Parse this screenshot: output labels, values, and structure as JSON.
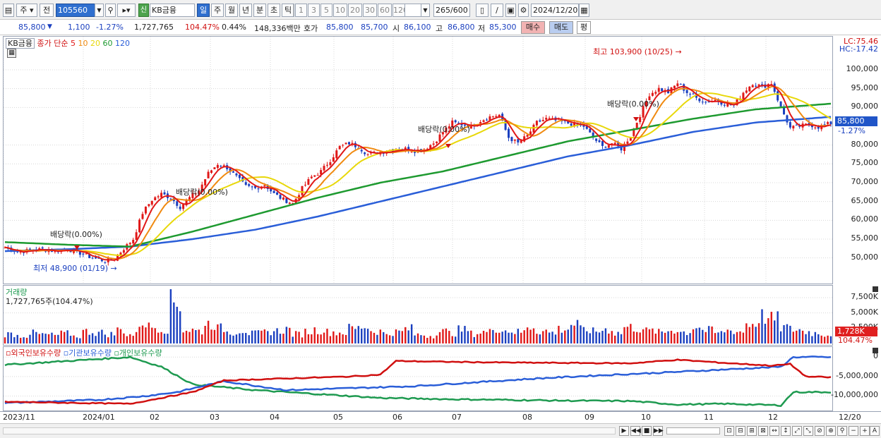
{
  "toolbar": {
    "period_label": "주",
    "prev_label": "전",
    "stock_code": "105560",
    "new_badge": "신",
    "stock_name": "KB금융",
    "periods": [
      "일",
      "주",
      "월",
      "년",
      "분",
      "초",
      "틱"
    ],
    "active_period": "일",
    "intervals": [
      "1",
      "3",
      "5",
      "10",
      "20",
      "30",
      "60",
      "120"
    ],
    "count": "265",
    "count_total": "/600",
    "date": "2024/12/20"
  },
  "quote": {
    "price": "85,800",
    "down_arrow": "▼",
    "change": "1,100",
    "change_pct": "-1.27%",
    "volume": "1,727,765",
    "volume_ratio": "104.47%",
    "turnover": "0.44%",
    "amount": "148,336백만",
    "ask_label": "호가",
    "ask": "85,800",
    "bid": "85,700",
    "open_label": "시",
    "open": "86,100",
    "high_label": "고",
    "high": "86,800",
    "low_label": "저",
    "low": "85,300",
    "buy_label": "매수",
    "sell_label": "매도",
    "eval_label": "평"
  },
  "price_pane": {
    "name": "KB금융",
    "legend_title": "종가 단순",
    "ma": [
      {
        "label": "5",
        "color": "#e01818"
      },
      {
        "label": "10",
        "color": "#f08a10"
      },
      {
        "label": "20",
        "color": "#e8d80a"
      },
      {
        "label": "60",
        "color": "#1e9a30"
      },
      {
        "label": "120",
        "color": "#2a5ed8"
      }
    ],
    "lc": "LC:75.46",
    "hc": "HC:-17.42",
    "yticks": [
      "100,000",
      "95,000",
      "90,000",
      "80,000",
      "75,000",
      "70,000",
      "65,000",
      "60,000",
      "55,000",
      "50,000"
    ],
    "price_tag": "85,800",
    "price_pct": "-1.27%",
    "annotations": {
      "high": "최고 103,900 (10/25)",
      "low": "최저 48,900 (01/19)",
      "div1": "배당락(0.00%)",
      "div2": "배당락(0.00%)",
      "div3": "배당락(0.00%)",
      "div4": "배당락(0.00%)"
    }
  },
  "volume_pane": {
    "title": "거래량",
    "value": "1,727,765주(104.47%)",
    "yticks": [
      "7,500K",
      "5,000K",
      "2,500K"
    ],
    "tag": "1,728K",
    "tag_pct": "104.47%"
  },
  "holdings_pane": {
    "legend": [
      {
        "label": "외국인보유수량",
        "color": "#d01010"
      },
      {
        "label": "기관보유수량",
        "color": "#2a5ed8"
      },
      {
        "label": "개인보유수량",
        "color": "#1e9a50"
      }
    ],
    "yticks": [
      "0",
      "-5,000,000",
      "-10,000,000"
    ]
  },
  "date_axis": {
    "labels": [
      "2023/11",
      "2024/01",
      "02",
      "03",
      "04",
      "05",
      "06",
      "07",
      "08",
      "09",
      "10",
      "11",
      "12",
      "12/20"
    ]
  },
  "chart_data": {
    "type": "candlestick",
    "title": "KB금융",
    "y_unit": "KRW",
    "ylim": [
      46000,
      106000
    ],
    "x_range": [
      "2023/11",
      "2024/12/20"
    ],
    "series": [
      {
        "name": "종가",
        "points": [
          [
            0,
            52800
          ],
          [
            4,
            51600
          ],
          [
            8,
            52000
          ],
          [
            12,
            52300
          ],
          [
            16,
            51800
          ],
          [
            20,
            52400
          ],
          [
            24,
            51300
          ],
          [
            28,
            50000
          ],
          [
            32,
            49200
          ],
          [
            35,
            49800
          ],
          [
            38,
            52500
          ],
          [
            41,
            55000
          ],
          [
            44,
            62000
          ],
          [
            47,
            65500
          ],
          [
            50,
            67000
          ],
          [
            53,
            66000
          ],
          [
            56,
            63500
          ],
          [
            59,
            66000
          ],
          [
            62,
            68000
          ],
          [
            65,
            72500
          ],
          [
            68,
            75000
          ],
          [
            71,
            74000
          ],
          [
            74,
            71500
          ],
          [
            77,
            69000
          ],
          [
            80,
            68500
          ],
          [
            83,
            69500
          ],
          [
            86,
            67000
          ],
          [
            89,
            65500
          ],
          [
            92,
            64500
          ],
          [
            95,
            68500
          ],
          [
            98,
            71500
          ],
          [
            101,
            73000
          ],
          [
            104,
            76000
          ],
          [
            107,
            79500
          ],
          [
            110,
            80500
          ],
          [
            113,
            79500
          ],
          [
            116,
            77500
          ],
          [
            119,
            78000
          ],
          [
            122,
            78500
          ],
          [
            125,
            79000
          ],
          [
            128,
            79000
          ],
          [
            131,
            78500
          ],
          [
            134,
            79000
          ],
          [
            137,
            80500
          ],
          [
            140,
            83500
          ],
          [
            143,
            86000
          ],
          [
            146,
            85500
          ],
          [
            149,
            85000
          ],
          [
            152,
            86500
          ],
          [
            155,
            87500
          ],
          [
            158,
            88000
          ],
          [
            161,
            82000
          ],
          [
            164,
            80500
          ],
          [
            167,
            82500
          ],
          [
            170,
            86000
          ],
          [
            173,
            87000
          ],
          [
            176,
            86500
          ],
          [
            179,
            86000
          ],
          [
            182,
            85500
          ],
          [
            185,
            85000
          ],
          [
            188,
            82000
          ],
          [
            191,
            79500
          ],
          [
            194,
            80500
          ],
          [
            197,
            79000
          ],
          [
            200,
            82500
          ],
          [
            203,
            88000
          ],
          [
            206,
            93500
          ],
          [
            209,
            95000
          ],
          [
            212,
            94000
          ],
          [
            215,
            96500
          ],
          [
            218,
            94000
          ],
          [
            221,
            92500
          ],
          [
            224,
            91500
          ],
          [
            227,
            92000
          ],
          [
            230,
            91000
          ],
          [
            233,
            90500
          ],
          [
            236,
            94000
          ],
          [
            239,
            96500
          ],
          [
            242,
            95500
          ],
          [
            245,
            96500
          ],
          [
            248,
            90000
          ],
          [
            251,
            84500
          ],
          [
            254,
            85000
          ],
          [
            257,
            85500
          ],
          [
            260,
            84800
          ],
          [
            264,
            85800
          ]
        ]
      },
      {
        "name": "5",
        "color": "#e01818"
      },
      {
        "name": "10",
        "color": "#f08a10"
      },
      {
        "name": "20",
        "color": "#e8d80a"
      },
      {
        "name": "60",
        "color": "#1e9a30"
      },
      {
        "name": "120",
        "color": "#2a5ed8"
      }
    ],
    "ma60_points": [
      [
        0,
        54200
      ],
      [
        20,
        53500
      ],
      [
        40,
        53000
      ],
      [
        60,
        57000
      ],
      [
        80,
        61500
      ],
      [
        100,
        66000
      ],
      [
        120,
        70000
      ],
      [
        140,
        73000
      ],
      [
        160,
        77000
      ],
      [
        180,
        81000
      ],
      [
        200,
        84000
      ],
      [
        220,
        87000
      ],
      [
        240,
        89500
      ],
      [
        264,
        91000
      ]
    ],
    "ma120_points": [
      [
        0,
        51800
      ],
      [
        20,
        52300
      ],
      [
        40,
        53000
      ],
      [
        60,
        55000
      ],
      [
        80,
        57500
      ],
      [
        100,
        61000
      ],
      [
        120,
        65000
      ],
      [
        140,
        69000
      ],
      [
        160,
        73000
      ],
      [
        180,
        77000
      ],
      [
        200,
        80000
      ],
      [
        220,
        83500
      ],
      [
        240,
        86000
      ],
      [
        264,
        87500
      ]
    ],
    "volume_k": [
      1800,
      1500,
      2000,
      1700,
      1600,
      1900,
      1400,
      2300,
      2100,
      1800,
      2600,
      1700,
      4100,
      3200,
      2800,
      7800,
      2600,
      2400,
      3800,
      2900,
      2200,
      2600,
      1900,
      2100,
      2400,
      2700,
      1800,
      2300,
      2600,
      2200,
      2100,
      2900,
      3300,
      2400,
      1900,
      2200,
      2800,
      1700,
      1500,
      2300,
      2000,
      2600,
      1900,
      2200,
      3000,
      2500,
      2200,
      3300,
      2400,
      2100,
      2800,
      3700,
      2600,
      2300,
      2700,
      2000,
      3100,
      2900,
      2400,
      2100,
      2600,
      2200,
      3300,
      2500,
      2000,
      2500,
      2300,
      3800,
      5200,
      4600,
      3100,
      2700,
      2300,
      2000,
      1728
    ],
    "holdings": {
      "foreign": [
        [
          0,
          -11500000
        ],
        [
          40,
          -12000000
        ],
        [
          60,
          -9000000
        ],
        [
          70,
          -6000000
        ],
        [
          90,
          -5500000
        ],
        [
          110,
          -5000000
        ],
        [
          120,
          -4500000
        ],
        [
          125,
          -1000000
        ],
        [
          140,
          -1200000
        ],
        [
          160,
          -1400000
        ],
        [
          180,
          -1500000
        ],
        [
          200,
          -1600000
        ],
        [
          215,
          -700000
        ],
        [
          230,
          -1500000
        ],
        [
          245,
          -2200000
        ],
        [
          251,
          -1800000
        ],
        [
          256,
          -5000000
        ],
        [
          264,
          -5200000
        ]
      ],
      "institution": [
        [
          0,
          -11800000
        ],
        [
          30,
          -11000000
        ],
        [
          45,
          -10000000
        ],
        [
          55,
          -9000000
        ],
        [
          70,
          -6200000
        ],
        [
          90,
          -8500000
        ],
        [
          110,
          -8000000
        ],
        [
          130,
          -7500000
        ],
        [
          150,
          -6500000
        ],
        [
          170,
          -5500000
        ],
        [
          190,
          -4700000
        ],
        [
          210,
          -4000000
        ],
        [
          230,
          -3200000
        ],
        [
          248,
          -2500000
        ],
        [
          252,
          0
        ],
        [
          264,
          0
        ]
      ],
      "individual": [
        [
          0,
          -2000000
        ],
        [
          20,
          -1000000
        ],
        [
          40,
          0
        ],
        [
          50,
          -2500000
        ],
        [
          60,
          -7000000
        ],
        [
          80,
          -8500000
        ],
        [
          100,
          -9500000
        ],
        [
          120,
          -10500000
        ],
        [
          140,
          -10800000
        ],
        [
          160,
          -11000000
        ],
        [
          180,
          -11200000
        ],
        [
          200,
          -11300000
        ],
        [
          215,
          -12200000
        ],
        [
          230,
          -12000000
        ],
        [
          248,
          -12400000
        ],
        [
          252,
          -9000000
        ],
        [
          264,
          -9000000
        ]
      ]
    }
  }
}
